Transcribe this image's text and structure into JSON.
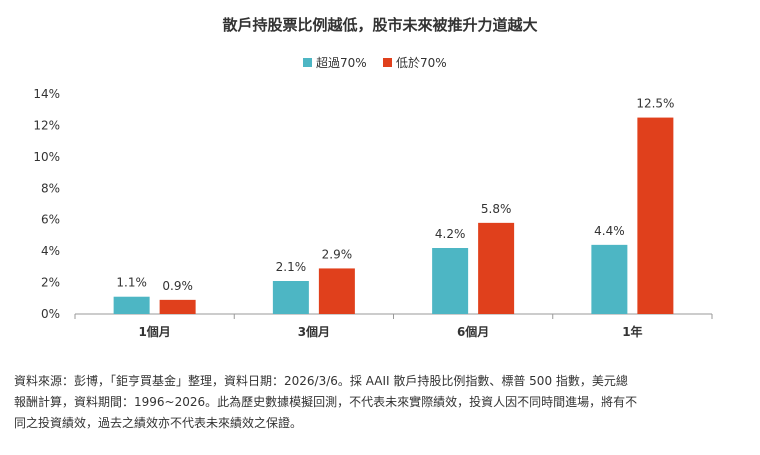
{
  "chart_data": {
    "type": "bar",
    "title": "散戶持股票比例越低，股市未來被推升力道越大",
    "categories": [
      "1個月",
      "3個月",
      "6個月",
      "1年"
    ],
    "series": [
      {
        "name": "超過70%",
        "color": "#4db6c4",
        "values": [
          1.1,
          2.1,
          4.2,
          4.4
        ],
        "labels": [
          "1.1%",
          "2.1%",
          "4.2%",
          "4.4%"
        ]
      },
      {
        "name": "低於70%",
        "color": "#e0401c",
        "values": [
          0.9,
          2.9,
          5.8,
          12.5
        ],
        "labels": [
          "0.9%",
          "2.9%",
          "5.8%",
          "12.5%"
        ]
      }
    ],
    "yticks": [
      "0%",
      "2%",
      "4%",
      "6%",
      "8%",
      "10%",
      "12%",
      "14%"
    ],
    "ylim": [
      0,
      14
    ],
    "legend_position": "top-center",
    "grid": false
  },
  "footnote": {
    "line1": "資料來源：彭博，「鉅亨買基金」整理，資料日期：2026/3/6。採 AAII 散戶持股比例指數、標普 500 指數，美元總",
    "line2": "報酬計算，資料期間：1996~2026。此為歷史數據模擬回測，不代表未來實際績效，投資人因不同時間進場，將有不",
    "line3": "同之投資績效，過去之績效亦不代表未來績效之保證。"
  }
}
